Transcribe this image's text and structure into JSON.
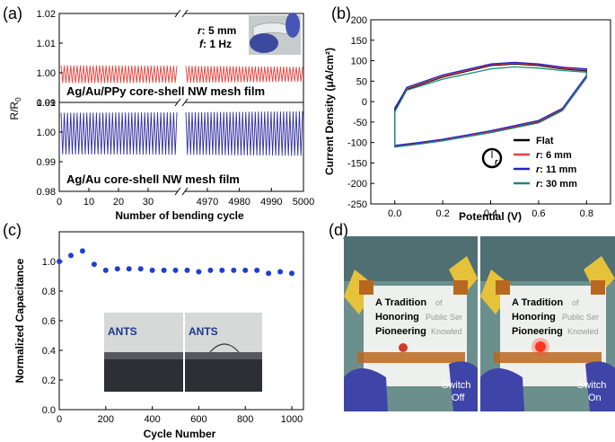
{
  "panels": {
    "a": {
      "label": "(a)"
    },
    "b": {
      "label": "(b)"
    },
    "c": {
      "label": "(c)"
    },
    "d": {
      "label": "(d)"
    }
  },
  "chart_data": [
    {
      "id": "a",
      "type": "line",
      "ylabel": "R/R",
      "ylabel_sub": "0",
      "xlabel": "Number of bending cycle",
      "ylim": [
        0.98,
        1.02
      ],
      "yticks": [
        "0.98",
        "0.99",
        "1.00",
        "1.01",
        "1.02"
      ],
      "xticks": [
        "0",
        "10",
        "20",
        "30",
        "4970",
        "4980",
        "4990",
        "5000"
      ],
      "annotations": {
        "r": "r",
        "r_value": ": 5 mm",
        "f": "f",
        "f_value": ": 1 Hz"
      },
      "series": [
        {
          "name": "Ag/Au/PPy core-shell NW mesh film",
          "color": "#e8403c",
          "center": 0.9995,
          "amplitude_start": 0.003,
          "amplitude_end": 0.0025
        },
        {
          "name": "Ag/Au core-shell NW mesh film",
          "color": "#2e2ea0",
          "center": 0.9995,
          "amplitude_start": 0.007,
          "amplitude_end": 0.0075
        }
      ]
    },
    {
      "id": "b",
      "type": "line",
      "xlabel": "Potential (V)",
      "ylabel": "Current Density (μA/cm²)",
      "xlim": [
        -0.1,
        0.9
      ],
      "ylim": [
        -250,
        200
      ],
      "xticks": [
        "0.0",
        "0.2",
        "0.4",
        "0.6",
        "0.8"
      ],
      "yticks": [
        "-250",
        "-200",
        "-150",
        "-100",
        "-50",
        "0",
        "50",
        "100",
        "150",
        "200"
      ],
      "legend": {
        "position": "bottom-right",
        "entries": [
          {
            "prefix": "",
            "text": "Flat",
            "color": "#000000"
          },
          {
            "prefix": "r",
            "text": ": 6 mm",
            "color": "#e8403c"
          },
          {
            "prefix": "r",
            "text": ": 11 mm",
            "color": "#2222cc"
          },
          {
            "prefix": "r",
            "text": ": 30 mm",
            "color": "#1f8a7a"
          }
        ]
      },
      "inset_symbol": "r",
      "series": [
        {
          "name": "Flat",
          "color": "#000000",
          "upper": [
            [
              0.0,
              -20
            ],
            [
              0.05,
              30
            ],
            [
              0.2,
              60
            ],
            [
              0.4,
              88
            ],
            [
              0.5,
              92
            ],
            [
              0.6,
              88
            ],
            [
              0.7,
              80
            ],
            [
              0.8,
              75
            ]
          ],
          "lower": [
            [
              0.8,
              60
            ],
            [
              0.7,
              -20
            ],
            [
              0.6,
              -50
            ],
            [
              0.4,
              -75
            ],
            [
              0.2,
              -95
            ],
            [
              0.1,
              -103
            ],
            [
              0.0,
              -110
            ]
          ]
        },
        {
          "name": "r: 6 mm",
          "color": "#e8403c",
          "upper": [
            [
              0.0,
              -15
            ],
            [
              0.05,
              32
            ],
            [
              0.2,
              62
            ],
            [
              0.4,
              90
            ],
            [
              0.5,
              94
            ],
            [
              0.6,
              90
            ],
            [
              0.7,
              82
            ],
            [
              0.8,
              77
            ]
          ],
          "lower": [
            [
              0.8,
              62
            ],
            [
              0.7,
              -18
            ],
            [
              0.6,
              -48
            ],
            [
              0.4,
              -73
            ],
            [
              0.2,
              -93
            ],
            [
              0.1,
              -101
            ],
            [
              0.0,
              -108
            ]
          ]
        },
        {
          "name": "r: 11 mm",
          "color": "#2222cc",
          "upper": [
            [
              0.0,
              -18
            ],
            [
              0.05,
              35
            ],
            [
              0.2,
              65
            ],
            [
              0.4,
              92
            ],
            [
              0.5,
              96
            ],
            [
              0.6,
              92
            ],
            [
              0.7,
              84
            ],
            [
              0.8,
              80
            ]
          ],
          "lower": [
            [
              0.8,
              64
            ],
            [
              0.7,
              -16
            ],
            [
              0.6,
              -46
            ],
            [
              0.4,
              -71
            ],
            [
              0.2,
              -92
            ],
            [
              0.1,
              -100
            ],
            [
              0.0,
              -107
            ]
          ]
        },
        {
          "name": "r: 30 mm",
          "color": "#1f8a7a",
          "upper": [
            [
              0.0,
              -25
            ],
            [
              0.05,
              28
            ],
            [
              0.2,
              55
            ],
            [
              0.4,
              80
            ],
            [
              0.5,
              85
            ],
            [
              0.6,
              82
            ],
            [
              0.7,
              76
            ],
            [
              0.8,
              72
            ]
          ],
          "lower": [
            [
              0.8,
              58
            ],
            [
              0.7,
              -22
            ],
            [
              0.6,
              -52
            ],
            [
              0.4,
              -76
            ],
            [
              0.2,
              -96
            ],
            [
              0.1,
              -104
            ],
            [
              0.0,
              -111
            ]
          ]
        }
      ]
    },
    {
      "id": "c",
      "type": "scatter",
      "xlabel": "Cycle Number",
      "ylabel": "Normalized Capacitance",
      "xlim": [
        0,
        1050
      ],
      "ylim": [
        0.0,
        1.2
      ],
      "xticks": [
        "0",
        "200",
        "400",
        "600",
        "800",
        "1000"
      ],
      "yticks": [
        "0.0",
        "0.2",
        "0.4",
        "0.6",
        "0.8",
        "1.0"
      ],
      "color": "#1f3fd0",
      "x": [
        0,
        50,
        100,
        150,
        200,
        250,
        300,
        350,
        400,
        450,
        500,
        550,
        600,
        650,
        700,
        750,
        800,
        850,
        900,
        950,
        1000
      ],
      "y": [
        1.0,
        1.04,
        1.07,
        0.98,
        0.94,
        0.95,
        0.95,
        0.95,
        0.94,
        0.94,
        0.94,
        0.94,
        0.93,
        0.94,
        0.94,
        0.94,
        0.94,
        0.94,
        0.92,
        0.93,
        0.92
      ],
      "inset_text": [
        "ANTS",
        "ANTS"
      ]
    }
  ],
  "photo_d": {
    "sign_lines": [
      "A Tradition",
      "Honoring",
      "Pioneering"
    ],
    "sign_lines_faded": [
      "of",
      "Public Ser",
      "Knowled"
    ],
    "left_label": [
      "Switch",
      "Off"
    ],
    "right_label": [
      "Switch",
      "On"
    ]
  }
}
